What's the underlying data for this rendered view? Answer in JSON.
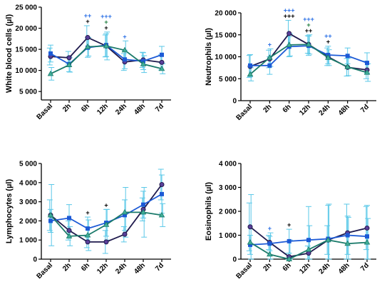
{
  "chart_data": [
    {
      "type": "line",
      "title": "",
      "xlabel": "",
      "ylabel": "White blood cells (µl)",
      "ylim": [
        3000,
        25000
      ],
      "yticks": [
        5000,
        10000,
        15000,
        20000,
        25000
      ],
      "ytick_labels": [
        "5 000",
        "10 000",
        "15 000",
        "20 000",
        "25 000"
      ],
      "categories": [
        "Basal",
        "2h",
        "6h",
        "12h",
        "24h",
        "48h",
        "7d"
      ],
      "series": [
        {
          "color": "#1f1a4d",
          "marker": "circle",
          "values": [
            13300,
            13000,
            17800,
            15800,
            12000,
            12500,
            11900
          ],
          "error": [
            2000,
            1500,
            2800,
            2600,
            2000,
            1800,
            1800
          ]
        },
        {
          "color": "#1c5ad6",
          "marker": "square",
          "values": [
            14000,
            11500,
            15400,
            16000,
            12600,
            12200,
            13700
          ],
          "error": [
            2000,
            1800,
            2300,
            2700,
            2200,
            2000,
            2000
          ]
        },
        {
          "color": "#1a7a6a",
          "marker": "triangle",
          "values": [
            9200,
            11300,
            15600,
            15800,
            14800,
            11500,
            10400
          ],
          "error": [
            1500,
            1700,
            2200,
            3300,
            2200,
            2000,
            1200
          ]
        }
      ],
      "annotations": [
        {
          "category": "6h",
          "rows": [
            {
              "text": "++",
              "color": "#2a6fe6"
            },
            {
              "text": "+",
              "color": "#000000"
            }
          ]
        },
        {
          "category": "12h",
          "rows": [
            {
              "text": "+++",
              "color": "#2a6fe6"
            },
            {
              "text": "+",
              "color": "#1a7a3a"
            },
            {
              "text": "+",
              "color": "#000000"
            }
          ]
        },
        {
          "category": "24h",
          "rows": [
            {
              "text": "+",
              "color": "#2a6fe6"
            }
          ]
        }
      ]
    },
    {
      "type": "line",
      "title": "",
      "xlabel": "",
      "ylabel": "Neutrophils (µl)",
      "ylim": [
        0,
        20000
      ],
      "yticks": [
        0,
        5000,
        10000,
        15000,
        20000
      ],
      "ytick_labels": [
        "0",
        "5 000",
        "10 000",
        "15 000",
        "20 000"
      ],
      "categories": [
        "Basal",
        "2h",
        "6h",
        "12h",
        "24h",
        "48h",
        "7d"
      ],
      "series": [
        {
          "color": "#1f1a4d",
          "marker": "circle",
          "values": [
            7800,
            9500,
            15300,
            12800,
            10000,
            7600,
            7000
          ],
          "error": [
            2500,
            2000,
            3000,
            2000,
            2000,
            2000,
            2000
          ]
        },
        {
          "color": "#1c5ad6",
          "marker": "square",
          "values": [
            8000,
            8000,
            12300,
            12500,
            10400,
            10200,
            8600
          ],
          "error": [
            2500,
            2000,
            2300,
            2200,
            2000,
            1800,
            2300
          ]
        },
        {
          "color": "#1a7a6a",
          "marker": "triangle",
          "values": [
            6000,
            9800,
            12700,
            12800,
            9800,
            7700,
            6400
          ],
          "error": [
            1500,
            2000,
            2500,
            2200,
            1800,
            2000,
            2000
          ]
        }
      ],
      "annotations": [
        {
          "category": "2h",
          "rows": [
            {
              "text": "+",
              "color": "#2a6fe6"
            }
          ]
        },
        {
          "category": "6h",
          "rows": [
            {
              "text": "+++",
              "color": "#2a6fe6"
            },
            {
              "text": "+++",
              "color": "#000000"
            }
          ]
        },
        {
          "category": "12h",
          "rows": [
            {
              "text": "+++",
              "color": "#2a6fe6"
            },
            {
              "text": "+",
              "color": "#1a7a3a"
            },
            {
              "text": "++",
              "color": "#000000"
            }
          ]
        },
        {
          "category": "24h",
          "rows": [
            {
              "text": "++",
              "color": "#2a6fe6"
            },
            {
              "text": "+",
              "color": "#000000"
            }
          ]
        }
      ]
    },
    {
      "type": "line",
      "title": "",
      "xlabel": "",
      "ylabel": "Lymphocytes (µl)",
      "ylim": [
        0,
        5000
      ],
      "yticks": [
        0,
        1000,
        2000,
        3000,
        4000,
        5000
      ],
      "ytick_labels": [
        "0",
        "1 000",
        "2 000",
        "3 000",
        "4 000",
        "5 000"
      ],
      "categories": [
        "Basal",
        "2h",
        "6h",
        "12h",
        "24h",
        "48h",
        "7d"
      ],
      "series": [
        {
          "color": "#1f1a4d",
          "marker": "circle",
          "values": [
            2300,
            1500,
            900,
            900,
            1300,
            2600,
            3900
          ],
          "error": [
            800,
            500,
            300,
            600,
            400,
            600,
            800
          ]
        },
        {
          "color": "#1c5ad6",
          "marker": "square",
          "values": [
            2000,
            2150,
            1600,
            1900,
            2300,
            2850,
            3400
          ],
          "error": [
            600,
            700,
            600,
            700,
            800,
            700,
            1000
          ]
        },
        {
          "color": "#1a7a6a",
          "marker": "triangle",
          "values": [
            2300,
            1200,
            1250,
            1800,
            2450,
            2450,
            2300
          ],
          "error": [
            1600,
            500,
            800,
            800,
            1300,
            1300,
            600
          ]
        }
      ],
      "annotations": [
        {
          "category": "6h",
          "rows": [
            {
              "text": "+",
              "color": "#000000"
            }
          ]
        },
        {
          "category": "12h",
          "rows": [
            {
              "text": "+",
              "color": "#000000"
            }
          ]
        }
      ]
    },
    {
      "type": "line",
      "title": "",
      "xlabel": "",
      "ylabel": "Eosinophils (µl)",
      "ylim": [
        0,
        4000
      ],
      "yticks": [
        0,
        1000,
        2000,
        3000,
        4000
      ],
      "ytick_labels": [
        "0",
        "1 000",
        "2 000",
        "3 000",
        "4 000"
      ],
      "categories": [
        "Basal",
        "2h",
        "6h",
        "12h",
        "24h",
        "48h",
        "7d"
      ],
      "series": [
        {
          "color": "#1f1a4d",
          "marker": "circle",
          "values": [
            1350,
            700,
            100,
            250,
            800,
            1100,
            1300
          ],
          "error": [
            1000,
            300,
            150,
            300,
            600,
            1200,
            900
          ]
        },
        {
          "color": "#1c5ad6",
          "marker": "square",
          "values": [
            600,
            650,
            750,
            800,
            850,
            1000,
            950
          ],
          "error": [
            400,
            300,
            500,
            1400,
            1400,
            800,
            1300
          ]
        },
        {
          "color": "#1a7a6a",
          "marker": "triangle",
          "values": [
            700,
            200,
            0,
            400,
            800,
            650,
            700
          ],
          "error": [
            2000,
            900,
            800,
            1000,
            1500,
            1100,
            1000
          ]
        }
      ],
      "annotations": [
        {
          "category": "2h",
          "rows": [
            {
              "text": "+",
              "color": "#2a6fe6"
            }
          ]
        },
        {
          "category": "6h",
          "rows": [
            {
              "text": "+",
              "color": "#000000"
            }
          ]
        }
      ]
    }
  ]
}
